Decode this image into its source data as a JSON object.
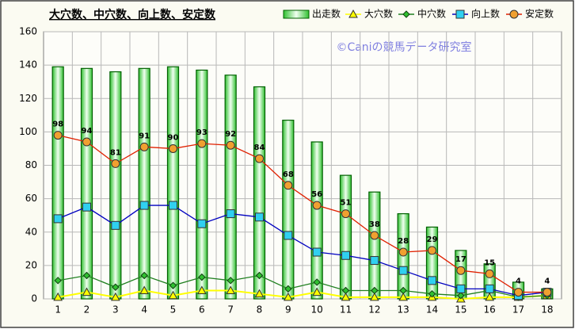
{
  "chart_data": {
    "type": "bar",
    "title": "大穴数、中穴数、向上数、安定数",
    "annotation": "©Caniの競馬データ研究室",
    "categories": [
      "1",
      "2",
      "3",
      "4",
      "5",
      "6",
      "7",
      "8",
      "9",
      "10",
      "11",
      "12",
      "13",
      "14",
      "15",
      "16",
      "17",
      "18"
    ],
    "series": [
      {
        "name": "出走数",
        "type": "bar",
        "color": "#00a000",
        "values": [
          139,
          138,
          136,
          138,
          139,
          137,
          134,
          127,
          107,
          94,
          74,
          64,
          51,
          43,
          29,
          21,
          10,
          6
        ]
      },
      {
        "name": "大穴数",
        "type": "line",
        "marker": "triangle",
        "color": "#ffff00",
        "values": [
          1,
          4,
          1,
          5,
          2,
          5,
          5,
          3,
          1,
          4,
          1,
          1,
          1,
          1,
          0,
          1,
          1,
          2
        ]
      },
      {
        "name": "中穴数",
        "type": "line",
        "marker": "diamond",
        "color": "#208020",
        "values": [
          11,
          14,
          7,
          14,
          8,
          13,
          11,
          14,
          6,
          10,
          5,
          5,
          5,
          3,
          2,
          5,
          1,
          2
        ]
      },
      {
        "name": "向上数",
        "type": "line",
        "marker": "square",
        "color": "#0000c0",
        "values": [
          48,
          55,
          44,
          56,
          56,
          45,
          51,
          49,
          38,
          28,
          26,
          23,
          17,
          11,
          6,
          6,
          2,
          4
        ]
      },
      {
        "name": "安定数",
        "type": "line",
        "marker": "circle",
        "color": "#e02000",
        "data_labels": true,
        "values": [
          98,
          94,
          81,
          91,
          90,
          93,
          92,
          84,
          68,
          56,
          51,
          38,
          28,
          29,
          17,
          15,
          4,
          4
        ]
      }
    ],
    "ylim": [
      0,
      160
    ],
    "yticks": [
      0,
      20,
      40,
      60,
      80,
      100,
      120,
      140,
      160
    ],
    "grid": true,
    "legend": "top-right"
  }
}
